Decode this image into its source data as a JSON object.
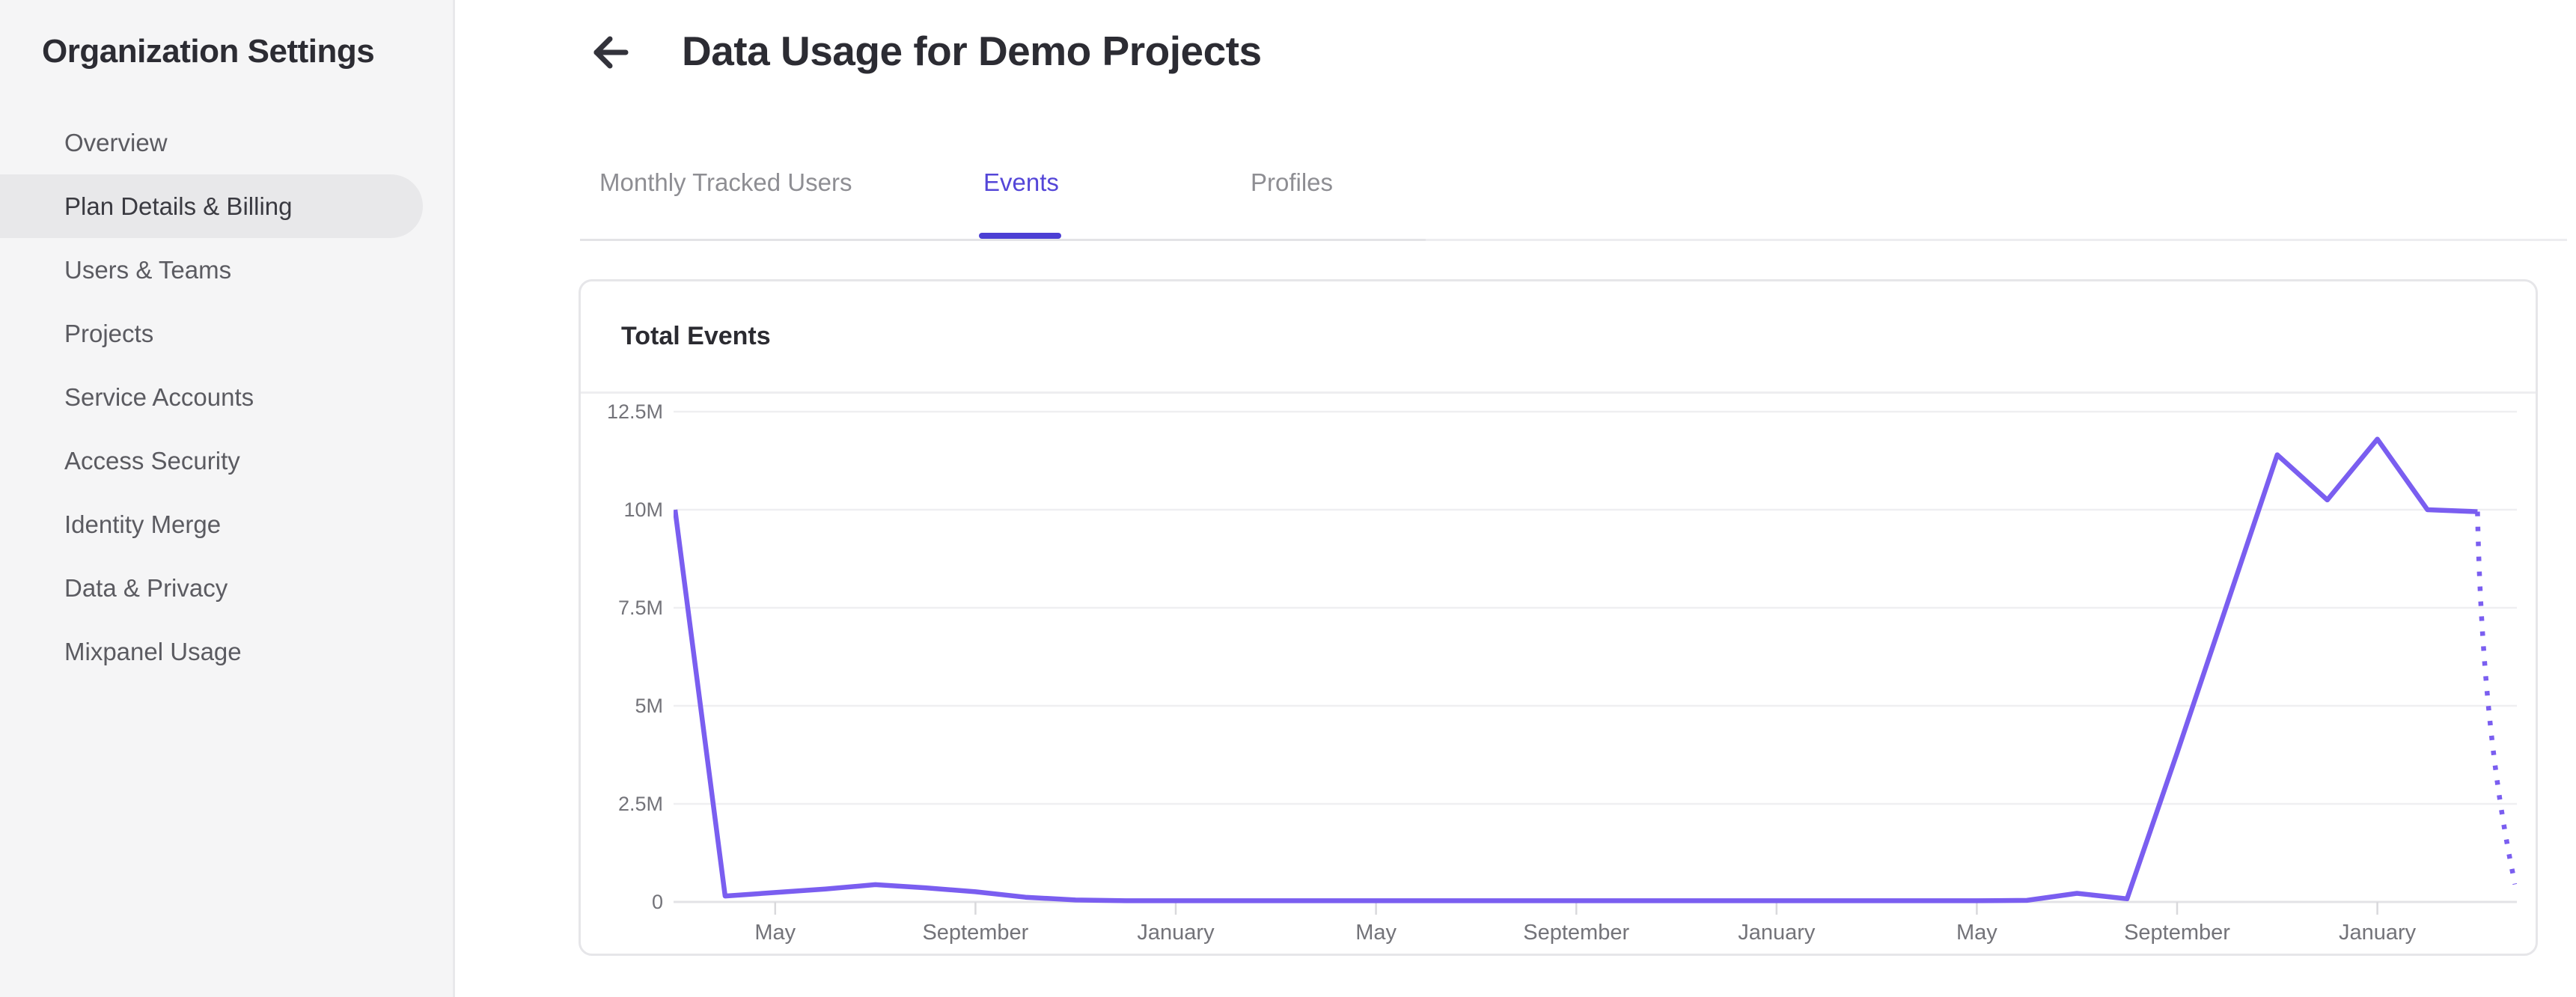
{
  "sidebar": {
    "title": "Organization Settings",
    "items": [
      {
        "label": "Overview",
        "active": false
      },
      {
        "label": "Plan Details & Billing",
        "active": true
      },
      {
        "label": "Users & Teams",
        "active": false
      },
      {
        "label": "Projects",
        "active": false
      },
      {
        "label": "Service Accounts",
        "active": false
      },
      {
        "label": "Access Security",
        "active": false
      },
      {
        "label": "Identity Merge",
        "active": false
      },
      {
        "label": "Data & Privacy",
        "active": false
      },
      {
        "label": "Mixpanel Usage",
        "active": false
      }
    ]
  },
  "header": {
    "back_icon": "arrow-left",
    "title": "Data Usage for Demo Projects"
  },
  "tabs": [
    {
      "label": "Monthly Tracked Users",
      "active": false
    },
    {
      "label": "Events",
      "active": true
    },
    {
      "label": "Profiles",
      "active": false
    }
  ],
  "card": {
    "title": "Total Events"
  },
  "colors": {
    "accent_tab": "#5446d8",
    "tab_underline": "#4c3fd4",
    "chart_line": "#7a5ef0",
    "gridline": "#efeff1",
    "axis_line": "#e3e3e6",
    "axis_text": "#737379"
  },
  "chart_data": {
    "type": "line",
    "title": "Total Events",
    "xlabel": "",
    "ylabel": "",
    "grid": true,
    "legend": false,
    "ylim_millions": [
      0,
      12.5
    ],
    "y_tick_labels": [
      "12.5M",
      "10M",
      "7.5M",
      "5M",
      "2.5M",
      "0"
    ],
    "y_tick_values_millions": [
      12.5,
      10,
      7.5,
      5,
      2.5,
      0
    ],
    "x_tick_labels": [
      "May",
      "September",
      "January",
      "May",
      "September",
      "January",
      "May",
      "September",
      "January"
    ],
    "x_tick_month_indices": [
      2,
      6,
      10,
      14,
      18,
      22,
      26,
      30,
      34
    ],
    "series": [
      {
        "name": "Total Events",
        "values_millions": [
          10,
          0.15,
          0.24,
          0.33,
          0.44,
          0.36,
          0.26,
          0.12,
          0.05,
          0.03,
          0.03,
          0.03,
          0.03,
          0.03,
          0.03,
          0.03,
          0.03,
          0.03,
          0.03,
          0.03,
          0.03,
          0.03,
          0.03,
          0.03,
          0.03,
          0.03,
          0.03,
          0.04,
          0.22,
          0.08,
          3.8,
          7.6,
          11.4,
          10.25,
          11.8,
          10.0,
          9.95
        ]
      }
    ],
    "projection": {
      "style": "dotted",
      "months_after_last": 0.75,
      "end_value_millions": 0.45
    }
  }
}
